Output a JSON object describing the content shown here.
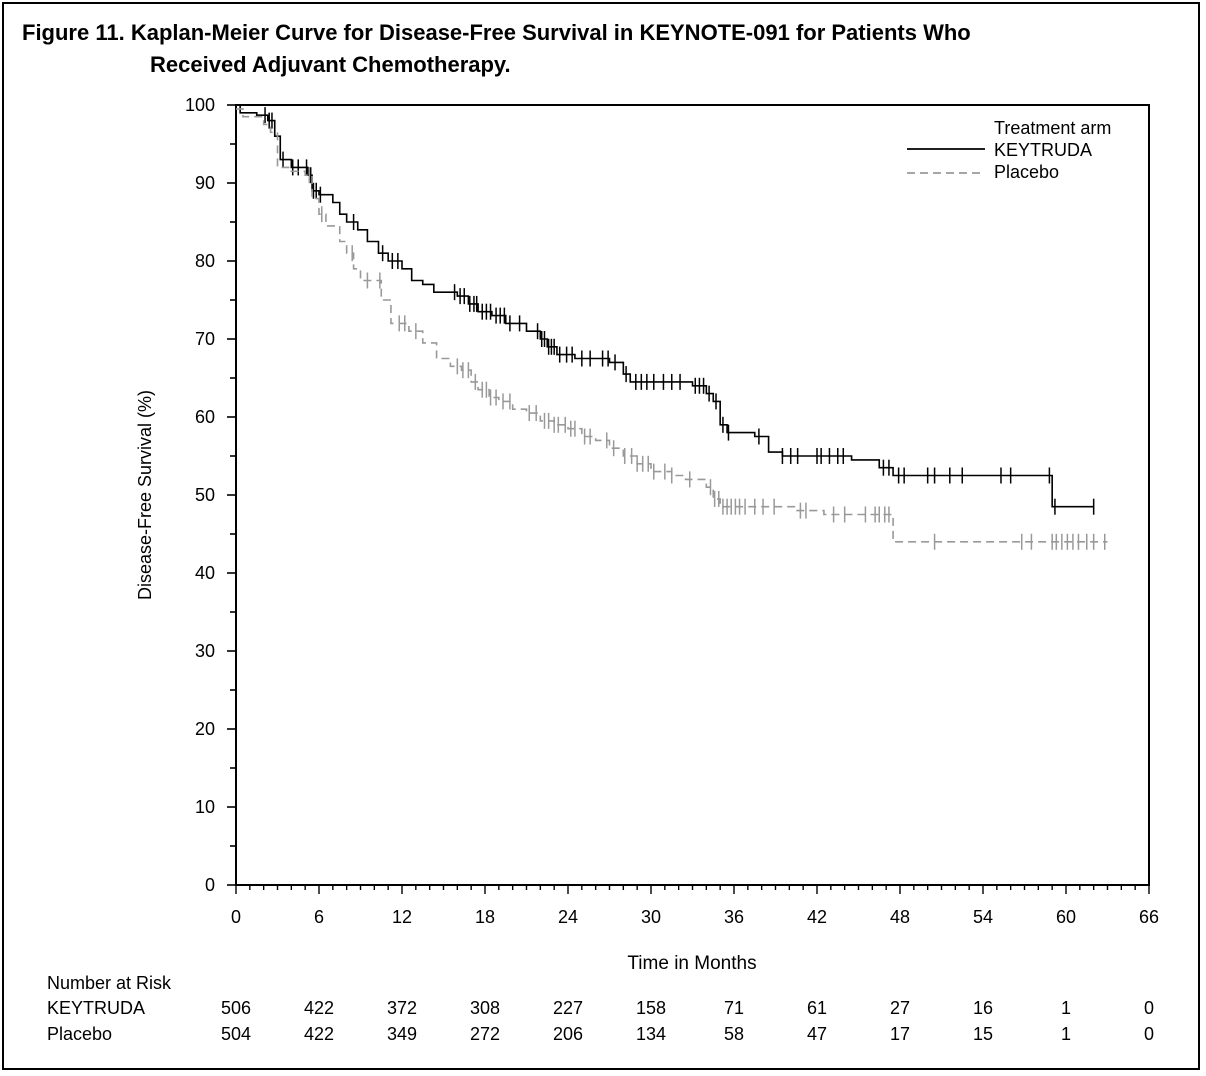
{
  "figure": {
    "title_line1": "Figure 11. Kaplan-Meier Curve for Disease-Free Survival in KEYNOTE-091 for Patients Who",
    "title_line2": "Received Adjuvant Chemotherapy."
  },
  "chart_data": {
    "type": "line",
    "title": "Figure 11. Kaplan-Meier Curve for Disease-Free Survival in KEYNOTE-091 for Patients Who Received Adjuvant Chemotherapy.",
    "xlabel": "Time in Months",
    "ylabel": "Disease-Free Survival (%)",
    "xlim": [
      0,
      66
    ],
    "ylim": [
      0,
      100
    ],
    "x_ticks": [
      0,
      6,
      12,
      18,
      24,
      30,
      36,
      42,
      48,
      54,
      60,
      66
    ],
    "y_ticks": [
      0,
      10,
      20,
      30,
      40,
      50,
      60,
      70,
      80,
      90,
      100
    ],
    "legend": {
      "title": "Treatment arm",
      "position": "top-right"
    },
    "grid": false,
    "series": [
      {
        "name": "KEYTRUDA",
        "color": "#000000",
        "style": "solid",
        "steps": [
          [
            0,
            100
          ],
          [
            0.3,
            99
          ],
          [
            1.5,
            98.7
          ],
          [
            2.3,
            98
          ],
          [
            2.8,
            96
          ],
          [
            3.2,
            93
          ],
          [
            4.0,
            92
          ],
          [
            5.2,
            91
          ],
          [
            5.5,
            89
          ],
          [
            6.0,
            88.5
          ],
          [
            7.0,
            87.5
          ],
          [
            7.5,
            86
          ],
          [
            8.0,
            85
          ],
          [
            8.8,
            84
          ],
          [
            9.5,
            82.5
          ],
          [
            10.3,
            81
          ],
          [
            11.0,
            80
          ],
          [
            12.0,
            79
          ],
          [
            12.7,
            77.5
          ],
          [
            13.5,
            77
          ],
          [
            14.3,
            76
          ],
          [
            16.0,
            75.5
          ],
          [
            16.8,
            74.5
          ],
          [
            17.5,
            73.5
          ],
          [
            18.5,
            73
          ],
          [
            19.5,
            72
          ],
          [
            21.0,
            71
          ],
          [
            22.0,
            70
          ],
          [
            22.5,
            69
          ],
          [
            23.2,
            68
          ],
          [
            24.5,
            67.5
          ],
          [
            27.0,
            67
          ],
          [
            28.0,
            65.5
          ],
          [
            28.5,
            64.5
          ],
          [
            33.0,
            64
          ],
          [
            34.0,
            63
          ],
          [
            34.5,
            62
          ],
          [
            35.0,
            59
          ],
          [
            35.5,
            58
          ],
          [
            37.5,
            57.5
          ],
          [
            38.5,
            55.5
          ],
          [
            39.5,
            55
          ],
          [
            44.5,
            54.5
          ],
          [
            46.5,
            53.5
          ],
          [
            47.5,
            52.5
          ],
          [
            59.0,
            48.5
          ],
          [
            62.0,
            48.5
          ]
        ],
        "censor_times": [
          2.1,
          2.4,
          2.6,
          3.4,
          4.1,
          4.5,
          5.1,
          5.4,
          5.6,
          5.8,
          6.1,
          8.5,
          10.6,
          11.3,
          11.7,
          15.8,
          16.2,
          16.5,
          16.9,
          17.2,
          17.4,
          17.8,
          18.1,
          18.4,
          18.8,
          19.1,
          19.4,
          19.8,
          20.5,
          21.8,
          22.1,
          22.3,
          22.6,
          22.8,
          23.0,
          23.4,
          23.9,
          24.3,
          25.0,
          25.6,
          26.5,
          26.9,
          27.4,
          28.2,
          28.9,
          29.3,
          29.7,
          30.2,
          30.9,
          31.5,
          32.1,
          33.2,
          33.5,
          33.8,
          34.2,
          34.7,
          35.2,
          35.6,
          37.8,
          39.5,
          40.1,
          40.6,
          42.0,
          42.3,
          42.9,
          43.5,
          43.9,
          46.8,
          47.2,
          47.9,
          48.3,
          50.0,
          50.5,
          51.6,
          52.5,
          55.3,
          56.0,
          58.8,
          59.2,
          62.0
        ]
      },
      {
        "name": "Placebo",
        "color": "#999999",
        "style": "dashed",
        "steps": [
          [
            0,
            99.5
          ],
          [
            0.5,
            98.5
          ],
          [
            2.0,
            97.5
          ],
          [
            2.5,
            96.5
          ],
          [
            3.0,
            92
          ],
          [
            4.0,
            91.5
          ],
          [
            5.0,
            91
          ],
          [
            5.5,
            88
          ],
          [
            6.0,
            86
          ],
          [
            6.5,
            84.5
          ],
          [
            7.5,
            82.5
          ],
          [
            8.0,
            81
          ],
          [
            8.5,
            79
          ],
          [
            9.0,
            77.5
          ],
          [
            10.5,
            75
          ],
          [
            11.2,
            72
          ],
          [
            12.5,
            71
          ],
          [
            13.5,
            69.5
          ],
          [
            14.5,
            67.5
          ],
          [
            15.5,
            66.5
          ],
          [
            16.3,
            66
          ],
          [
            17.0,
            64.5
          ],
          [
            17.5,
            63.5
          ],
          [
            18.3,
            62.5
          ],
          [
            19.0,
            62
          ],
          [
            20.0,
            61
          ],
          [
            21.0,
            60.5
          ],
          [
            22.0,
            59.5
          ],
          [
            23.0,
            59
          ],
          [
            24.0,
            58.5
          ],
          [
            25.0,
            57.5
          ],
          [
            26.0,
            57
          ],
          [
            27.0,
            56
          ],
          [
            28.0,
            55
          ],
          [
            29.0,
            54
          ],
          [
            30.0,
            53
          ],
          [
            31.5,
            52.5
          ],
          [
            32.5,
            52
          ],
          [
            34.0,
            51
          ],
          [
            34.5,
            49.5
          ],
          [
            35.0,
            48.5
          ],
          [
            40.5,
            48
          ],
          [
            42.5,
            47.5
          ],
          [
            47.5,
            44
          ],
          [
            63.0,
            44
          ]
        ],
        "censor_times": [
          5.3,
          6.2,
          8.4,
          9.5,
          10.4,
          11.8,
          12.2,
          13.0,
          16.0,
          16.4,
          16.8,
          17.3,
          17.8,
          18.1,
          18.4,
          18.8,
          19.3,
          19.8,
          21.2,
          21.7,
          22.3,
          22.6,
          23.0,
          23.3,
          23.8,
          24.2,
          24.5,
          25.2,
          25.6,
          26.8,
          27.3,
          28.1,
          28.6,
          29.0,
          29.4,
          29.8,
          30.2,
          31.0,
          31.5,
          32.8,
          34.3,
          34.6,
          34.9,
          35.2,
          35.5,
          35.8,
          36.1,
          36.4,
          36.8,
          37.5,
          38.1,
          38.9,
          40.8,
          41.2,
          43.2,
          44.0,
          45.5,
          46.2,
          46.5,
          46.9,
          47.2,
          50.5,
          56.8,
          57.5,
          59.0,
          59.3,
          59.7,
          60.1,
          60.5,
          60.9,
          61.5,
          62.0,
          62.8
        ]
      }
    ],
    "number_at_risk": {
      "heading": "Number at Risk",
      "rows": [
        {
          "label": "KEYTRUDA",
          "values": [
            "506",
            "422",
            "372",
            "308",
            "227",
            "158",
            "71",
            "61",
            "27",
            "16",
            "1",
            "0"
          ]
        },
        {
          "label": "Placebo",
          "values": [
            "504",
            "422",
            "349",
            "272",
            "206",
            "134",
            "58",
            "47",
            "17",
            "15",
            "1",
            "0"
          ]
        }
      ]
    }
  }
}
